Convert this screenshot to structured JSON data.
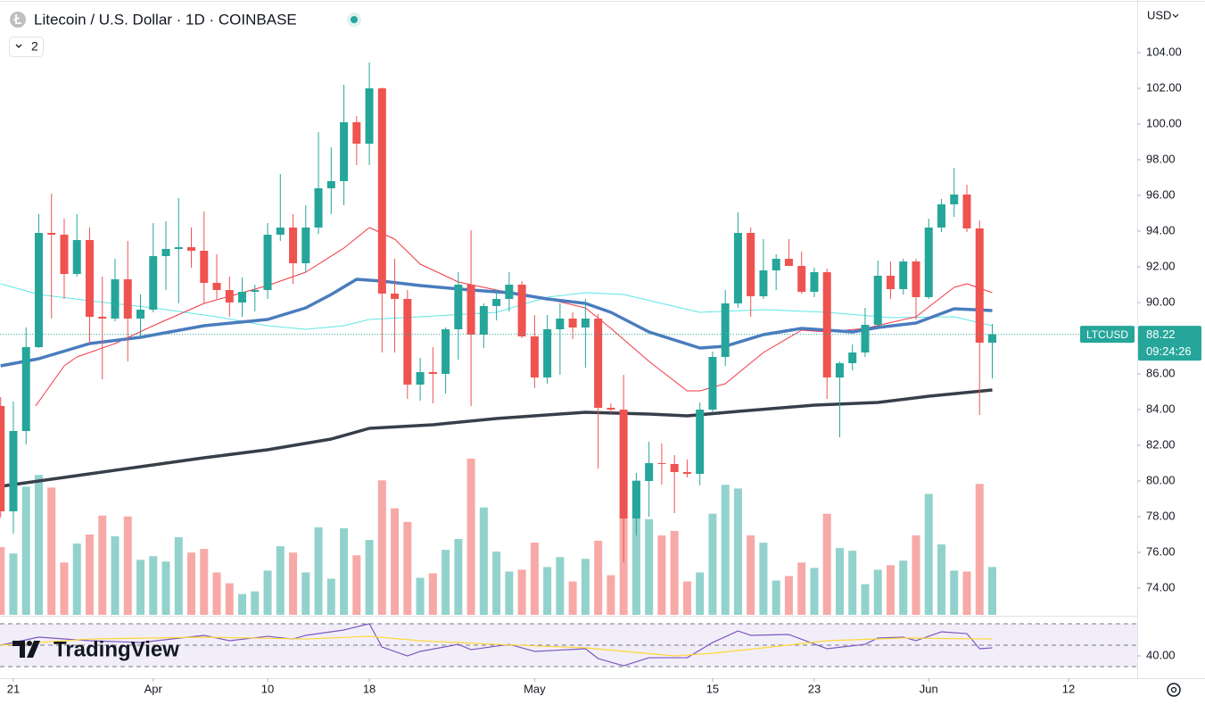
{
  "chart_data": {
    "type": "candlestick",
    "title": "Litecoin / U.S. Dollar · 1D · COINBASE",
    "legend_toggle": "2",
    "currency": "USD",
    "logo": "TradingView",
    "up_color": "#26a69a",
    "down_color": "#ef5350",
    "x": [
      -1,
      0,
      1,
      2,
      3,
      4,
      5,
      6,
      7,
      8,
      9,
      10,
      11,
      12,
      13,
      14,
      15,
      16,
      17,
      18,
      19,
      20,
      21,
      22,
      23,
      24,
      25,
      26,
      27,
      28,
      29,
      30,
      31,
      32,
      33,
      34,
      35,
      36,
      37,
      38,
      39,
      40,
      41,
      42,
      43,
      44,
      45,
      46,
      47,
      48,
      49,
      50,
      51,
      52,
      53,
      54,
      55,
      56,
      57,
      58,
      59,
      60,
      61,
      62,
      63,
      64,
      65,
      66,
      67,
      68,
      69,
      70,
      71,
      72,
      73,
      74,
      75,
      76,
      77
    ],
    "open": [
      84.2,
      78.3,
      82.8,
      87.5,
      93.9,
      93.8,
      91.6,
      93.5,
      89.2,
      89.1,
      91.3,
      89.1,
      89.6,
      92.6,
      93.0,
      93.1,
      92.9,
      91.1,
      90.7,
      90.0,
      90.6,
      90.7,
      93.8,
      94.2,
      92.2,
      94.2,
      96.4,
      96.8,
      100.1,
      98.9,
      102.0,
      90.5,
      90.2,
      85.4,
      86.1,
      86.0,
      88.5,
      91.0,
      88.2,
      89.8,
      90.2,
      91.0,
      88.1,
      85.8,
      88.5,
      89.1,
      88.6,
      89.1,
      84.1,
      84.0,
      77.9,
      80.0,
      81.0,
      80.95,
      80.5,
      80.4,
      84.0,
      86.95,
      89.95,
      93.9,
      90.35,
      91.8,
      92.45,
      92.05,
      90.6,
      91.7,
      85.8,
      86.6,
      87.2,
      88.75,
      91.5,
      90.75,
      92.3,
      90.3,
      94.2,
      95.5,
      96.05,
      94.15,
      87.75
    ],
    "high": [
      84.7,
      84.45,
      88.6,
      94.95,
      96.1,
      94.7,
      94.95,
      94.2,
      91.45,
      92.45,
      93.45,
      90.45,
      94.45,
      94.55,
      95.85,
      94.2,
      95.1,
      92.7,
      91.45,
      91.4,
      91.0,
      94.45,
      97.2,
      94.95,
      95.45,
      99.55,
      98.7,
      102.2,
      100.45,
      103.45,
      102.05,
      92.45,
      90.7,
      86.9,
      87.5,
      88.6,
      91.7,
      94.05,
      89.95,
      90.7,
      91.7,
      91.2,
      89.3,
      89.3,
      89.95,
      89.45,
      90.2,
      89.35,
      84.35,
      85.95,
      80.45,
      82.2,
      82.1,
      81.45,
      81.2,
      84.4,
      87.25,
      90.7,
      95.05,
      94.2,
      93.55,
      92.7,
      93.55,
      92.85,
      91.95,
      91.9,
      86.7,
      87.65,
      89.7,
      92.35,
      92.3,
      92.45,
      92.45,
      94.7,
      95.8,
      97.55,
      96.6,
      94.6,
      88.8
    ],
    "low": [
      77.95,
      77.05,
      82.05,
      87.45,
      89.1,
      90.2,
      91.45,
      87.7,
      85.7,
      88.95,
      86.7,
      87.95,
      89.45,
      90.7,
      89.95,
      91.95,
      89.95,
      90.2,
      89.2,
      89.2,
      89.5,
      90.2,
      93.45,
      91.05,
      91.7,
      93.85,
      94.95,
      95.45,
      97.7,
      97.7,
      87.2,
      87.2,
      84.6,
      84.5,
      84.35,
      84.9,
      86.8,
      84.2,
      87.45,
      89.0,
      89.5,
      88.0,
      85.2,
      85.45,
      85.95,
      87.95,
      86.35,
      80.7,
      83.8,
      75.45,
      76.95,
      78.0,
      79.8,
      78.2,
      80.2,
      79.75,
      83.85,
      86.45,
      89.7,
      89.2,
      90.2,
      90.7,
      92.2,
      90.5,
      90.3,
      84.6,
      82.45,
      86.2,
      86.95,
      88.5,
      90.2,
      90.45,
      89.05,
      90.2,
      93.95,
      94.8,
      93.95,
      83.7,
      85.75
    ],
    "close": [
      78.3,
      82.8,
      87.5,
      93.9,
      93.8,
      91.6,
      93.5,
      89.2,
      89.1,
      91.3,
      89.1,
      89.6,
      92.6,
      93.0,
      93.1,
      92.9,
      91.1,
      90.7,
      90.0,
      90.6,
      90.7,
      93.8,
      94.2,
      92.2,
      94.2,
      96.4,
      96.8,
      100.1,
      98.9,
      102.0,
      90.5,
      90.2,
      85.4,
      86.1,
      86.0,
      88.5,
      91.0,
      88.2,
      89.8,
      90.2,
      91.0,
      88.1,
      85.8,
      88.5,
      89.1,
      88.6,
      89.1,
      84.1,
      84.0,
      77.9,
      80.0,
      81.0,
      80.95,
      80.5,
      80.4,
      84.0,
      86.95,
      89.95,
      93.9,
      90.35,
      91.8,
      92.45,
      92.05,
      90.6,
      91.7,
      85.8,
      86.6,
      87.2,
      88.75,
      91.5,
      90.75,
      92.3,
      90.3,
      94.2,
      95.5,
      96.05,
      94.15,
      87.75,
      88.22
    ],
    "volume": [
      75,
      68,
      142,
      155,
      141,
      58,
      79,
      89,
      110,
      87,
      109,
      61,
      65,
      59,
      86,
      69,
      73,
      47,
      35,
      23,
      26,
      49,
      76,
      69,
      47,
      97,
      40,
      96,
      66,
      83,
      149,
      118,
      103,
      41,
      46,
      72,
      84,
      173,
      119,
      70,
      48,
      50,
      80,
      53,
      64,
      37,
      62,
      82,
      44,
      107,
      149,
      106,
      88,
      93,
      37,
      47,
      112,
      144,
      140,
      88,
      80,
      38,
      43,
      58,
      52,
      112,
      74,
      71,
      34,
      50,
      55,
      60,
      88,
      134,
      78,
      49,
      48,
      145,
      53
    ],
    "xlim": [
      -1.05,
      88.4
    ],
    "xticks": [
      {
        "value": 0,
        "label": "21"
      },
      {
        "value": 11,
        "label": "Apr"
      },
      {
        "value": 20,
        "label": "10"
      },
      {
        "value": 28,
        "label": "18"
      },
      {
        "value": 41,
        "label": "May"
      },
      {
        "value": 55,
        "label": "15"
      },
      {
        "value": 63,
        "label": "23"
      },
      {
        "value": 72,
        "label": "Jun"
      },
      {
        "value": 83,
        "label": "12"
      }
    ],
    "ylim": [
      72.5,
      106.95
    ],
    "yticks": [
      {
        "value": 74,
        "label": "74.00"
      },
      {
        "value": 76,
        "label": "76.00"
      },
      {
        "value": 78,
        "label": "78.00"
      },
      {
        "value": 80,
        "label": "80.00"
      },
      {
        "value": 82,
        "label": "82.00"
      },
      {
        "value": 84,
        "label": "84.00"
      },
      {
        "value": 86,
        "label": "86.00"
      },
      {
        "value": 88,
        "label": "88.00"
      },
      {
        "value": 90,
        "label": "90.00"
      },
      {
        "value": 92,
        "label": "92.00"
      },
      {
        "value": 94,
        "label": "94.00"
      },
      {
        "value": 96,
        "label": "96.00"
      },
      {
        "value": 98,
        "label": "98.00"
      },
      {
        "value": 100,
        "label": "100.00"
      },
      {
        "value": 102,
        "label": "102.00"
      },
      {
        "value": 104,
        "label": "104.00"
      }
    ],
    "overlays": [
      {
        "color": "#5ee7e5",
        "width": 1,
        "x": [
          -1,
          2,
          6,
          11,
          16,
          20,
          23,
          26,
          28,
          32,
          38,
          42,
          45,
          48,
          51,
          54,
          59,
          64,
          69,
          74,
          77
        ],
        "values": [
          91.05,
          90.45,
          90.1,
          89.7,
          89.2,
          88.7,
          88.5,
          88.7,
          89.05,
          89.2,
          89.45,
          90.3,
          90.55,
          90.45,
          89.95,
          89.45,
          89.6,
          89.45,
          89.15,
          89.2,
          88.7
        ]
      },
      {
        "color": "#f23645",
        "width": 1,
        "x": [
          1.75,
          4,
          5,
          8,
          11,
          15,
          20,
          23,
          26,
          28,
          30,
          32,
          35,
          38,
          42,
          45,
          47,
          50,
          53,
          54,
          56,
          59,
          62,
          64,
          67,
          71,
          74,
          75,
          77
        ],
        "values": [
          84.2,
          86.45,
          86.95,
          87.7,
          88.7,
          89.95,
          90.95,
          91.7,
          93.05,
          94.2,
          93.55,
          92.15,
          91.15,
          90.7,
          90.2,
          89.7,
          88.55,
          86.7,
          85.05,
          85.05,
          85.45,
          87.2,
          88.45,
          88.35,
          88.55,
          89.2,
          90.85,
          91.05,
          90.55
        ]
      },
      {
        "color": "#4a7cbe",
        "width": 3.5,
        "x": [
          -1,
          2,
          6,
          10,
          15,
          20,
          23,
          25,
          27,
          29,
          32,
          36,
          39,
          42,
          45,
          47,
          50,
          54,
          56,
          59,
          62,
          66,
          68,
          71,
          74,
          77
        ],
        "values": [
          86.45,
          86.85,
          87.7,
          88.05,
          88.7,
          89.05,
          89.7,
          90.45,
          91.3,
          91.2,
          90.95,
          90.7,
          90.55,
          90.2,
          89.95,
          89.45,
          88.35,
          87.45,
          87.55,
          88.2,
          88.55,
          88.35,
          88.6,
          88.85,
          89.65,
          89.55
        ]
      },
      {
        "color": "#363f4a",
        "width": 3.5,
        "x": [
          -1,
          5,
          10,
          15,
          20,
          25,
          28,
          33,
          38,
          45,
          50,
          53,
          57,
          63,
          68,
          72,
          77
        ],
        "values": [
          79.7,
          80.3,
          80.8,
          81.3,
          81.75,
          82.35,
          82.95,
          83.15,
          83.5,
          83.85,
          83.75,
          83.65,
          83.9,
          84.25,
          84.4,
          84.75,
          85.1
        ]
      }
    ],
    "last_price": {
      "label": "LTCUSD",
      "value": 88.22,
      "countdown": "09:24:26",
      "color": "#26a69a"
    },
    "rsi": {
      "ylim": [
        19.2,
        77.5
      ],
      "yticks": [
        {
          "value": 40,
          "label": "40.00"
        }
      ],
      "levels": [
        30,
        50,
        70
      ],
      "band_color": "#7e57c2",
      "series": [
        {
          "color": "#7e57c2",
          "x": [
            -1,
            2,
            6,
            10,
            15,
            17,
            20,
            22,
            23,
            26,
            28,
            29,
            31,
            32,
            35,
            36,
            39,
            41,
            45,
            46,
            48,
            50,
            53,
            55,
            57,
            58,
            61,
            64,
            67,
            68,
            70,
            71,
            73,
            75,
            76,
            77
          ],
          "values": [
            50,
            57.5,
            54.2,
            52.5,
            59.2,
            54.2,
            58.3,
            55.8,
            59.2,
            64.2,
            70,
            48.3,
            40,
            44.2,
            50.8,
            45.8,
            50.8,
            44.2,
            46.7,
            37.5,
            30.8,
            38.3,
            38.3,
            52.5,
            63.3,
            59.2,
            60,
            46.7,
            50.8,
            56.7,
            57.5,
            54.2,
            62.5,
            60.8,
            46.7,
            47.5
          ]
        },
        {
          "color": "#fdd835",
          "x": [
            -1,
            6,
            15,
            23,
            28,
            32,
            38,
            45,
            52,
            55,
            59,
            64,
            70,
            77
          ],
          "values": [
            50,
            55.8,
            57.5,
            55.8,
            58.3,
            54.2,
            50.8,
            47.5,
            40,
            42.5,
            47.5,
            54.2,
            56.7,
            55.8
          ]
        }
      ]
    }
  }
}
